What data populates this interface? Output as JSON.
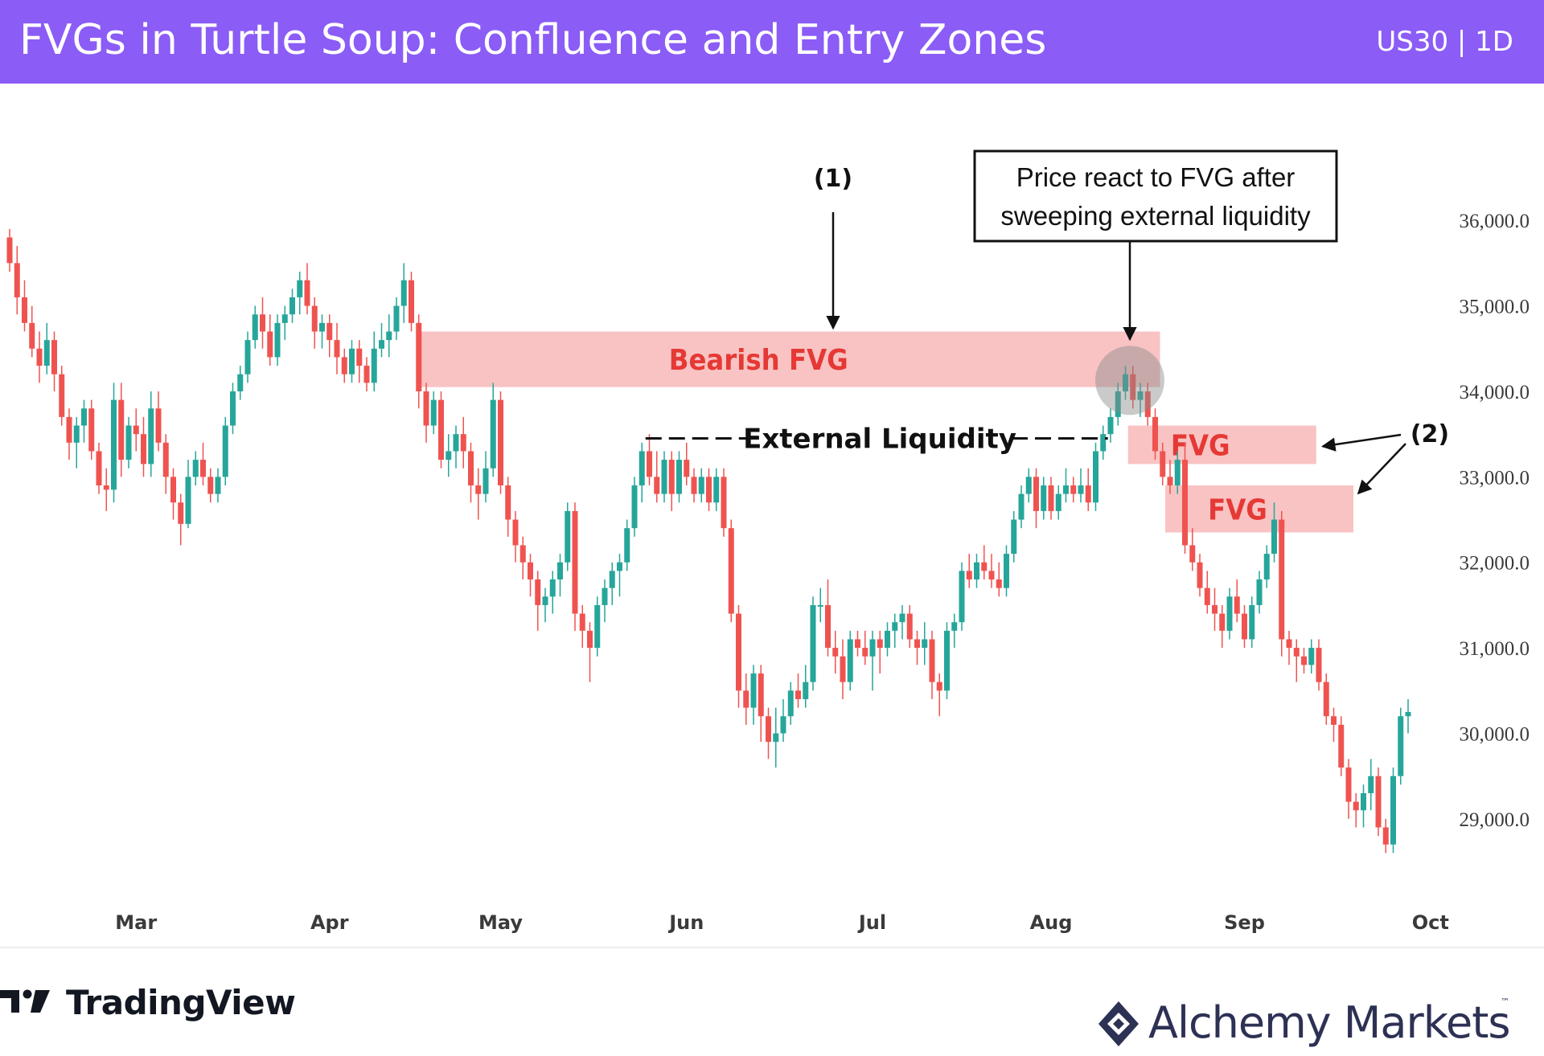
{
  "header": {
    "title": "FVGs in Turtle Soup: Confluence and Entry Zones",
    "symbol": "US30 | 1D"
  },
  "chart_data": {
    "type": "candlestick",
    "symbol": "US30",
    "timeframe": "1D",
    "ylim": [
      28200,
      37600
    ],
    "y_ticks": [
      {
        "value": 29000,
        "label": "29,000.0"
      },
      {
        "value": 30000,
        "label": "30,000.0"
      },
      {
        "value": 31000,
        "label": "31,000.0"
      },
      {
        "value": 32000,
        "label": "32,000.0"
      },
      {
        "value": 33000,
        "label": "33,000.0"
      },
      {
        "value": 34000,
        "label": "34,000.0"
      },
      {
        "value": 35000,
        "label": "35,000.0"
      },
      {
        "value": 36000,
        "label": "36,000.0"
      }
    ],
    "x_ticks": [
      {
        "index": 17,
        "label": "Mar"
      },
      {
        "index": 43,
        "label": "Apr"
      },
      {
        "index": 66,
        "label": "May"
      },
      {
        "index": 91,
        "label": "Jun"
      },
      {
        "index": 116,
        "label": "Jul"
      },
      {
        "index": 140,
        "label": "Aug"
      },
      {
        "index": 166,
        "label": "Sep"
      },
      {
        "index": 191,
        "label": "Oct"
      }
    ],
    "colors": {
      "up": "#26a69a",
      "down": "#ef5350",
      "zone": "#f8b4b4",
      "zone_text": "#e53935"
    },
    "candles": [
      [
        35800,
        35900,
        35400,
        35500
      ],
      [
        35500,
        35700,
        34900,
        35100
      ],
      [
        35100,
        35300,
        34700,
        34800
      ],
      [
        34800,
        35000,
        34400,
        34500
      ],
      [
        34500,
        34700,
        34100,
        34300
      ],
      [
        34300,
        34800,
        34200,
        34600
      ],
      [
        34600,
        34700,
        34000,
        34200
      ],
      [
        34200,
        34300,
        33600,
        33700
      ],
      [
        33700,
        33800,
        33200,
        33400
      ],
      [
        33400,
        33700,
        33100,
        33600
      ],
      [
        33600,
        33900,
        33400,
        33800
      ],
      [
        33800,
        33900,
        33200,
        33300
      ],
      [
        33300,
        33400,
        32800,
        32900
      ],
      [
        32900,
        33100,
        32600,
        32850
      ],
      [
        32850,
        34100,
        32700,
        33900
      ],
      [
        33900,
        34100,
        33000,
        33200
      ],
      [
        33200,
        33700,
        33100,
        33600
      ],
      [
        33600,
        33800,
        33300,
        33500
      ],
      [
        33500,
        33700,
        33000,
        33150
      ],
      [
        33150,
        34000,
        33000,
        33800
      ],
      [
        33800,
        34000,
        33300,
        33400
      ],
      [
        33400,
        33500,
        32800,
        33000
      ],
      [
        33000,
        33100,
        32500,
        32700
      ],
      [
        32700,
        32800,
        32200,
        32450
      ],
      [
        32450,
        33200,
        32400,
        33000
      ],
      [
        33000,
        33300,
        32900,
        33200
      ],
      [
        33200,
        33400,
        32900,
        33000
      ],
      [
        33000,
        33100,
        32700,
        32800
      ],
      [
        32800,
        33100,
        32700,
        33000
      ],
      [
        33000,
        33700,
        32900,
        33600
      ],
      [
        33600,
        34100,
        33500,
        34000
      ],
      [
        34000,
        34300,
        33900,
        34200
      ],
      [
        34200,
        34700,
        34100,
        34600
      ],
      [
        34600,
        35000,
        34500,
        34900
      ],
      [
        34900,
        35100,
        34500,
        34700
      ],
      [
        34700,
        34900,
        34300,
        34400
      ],
      [
        34400,
        34900,
        34300,
        34800
      ],
      [
        34800,
        35000,
        34600,
        34900
      ],
      [
        34900,
        35200,
        34800,
        35100
      ],
      [
        35100,
        35400,
        34900,
        35300
      ],
      [
        35300,
        35500,
        34900,
        35000
      ],
      [
        35000,
        35100,
        34500,
        34700
      ],
      [
        34700,
        34900,
        34500,
        34800
      ],
      [
        34800,
        34900,
        34400,
        34600
      ],
      [
        34600,
        34800,
        34200,
        34400
      ],
      [
        34400,
        34500,
        34100,
        34200
      ],
      [
        34200,
        34600,
        34100,
        34500
      ],
      [
        34500,
        34600,
        34100,
        34300
      ],
      [
        34300,
        34400,
        34000,
        34100
      ],
      [
        34100,
        34700,
        34000,
        34500
      ],
      [
        34500,
        34800,
        34400,
        34600
      ],
      [
        34600,
        34900,
        34400,
        34700
      ],
      [
        34700,
        35100,
        34600,
        35000
      ],
      [
        35000,
        35500,
        34800,
        35300
      ],
      [
        35300,
        35400,
        34700,
        34800
      ],
      [
        34800,
        34900,
        33800,
        34000
      ],
      [
        34000,
        34100,
        33400,
        33600
      ],
      [
        33600,
        34000,
        33500,
        33900
      ],
      [
        33900,
        34000,
        33100,
        33200
      ],
      [
        33200,
        33500,
        33000,
        33300
      ],
      [
        33300,
        33600,
        33100,
        33500
      ],
      [
        33500,
        33700,
        33100,
        33300
      ],
      [
        33300,
        33400,
        32700,
        32900
      ],
      [
        32900,
        33100,
        32500,
        32800
      ],
      [
        32800,
        33300,
        32700,
        33100
      ],
      [
        33100,
        34100,
        33000,
        33900
      ],
      [
        33900,
        34000,
        32800,
        32900
      ],
      [
        32900,
        33000,
        32300,
        32500
      ],
      [
        32500,
        32600,
        32000,
        32200
      ],
      [
        32200,
        32300,
        31800,
        32000
      ],
      [
        32000,
        32100,
        31600,
        31800
      ],
      [
        31800,
        31900,
        31200,
        31500
      ],
      [
        31500,
        31700,
        31300,
        31600
      ],
      [
        31600,
        31900,
        31400,
        31800
      ],
      [
        31800,
        32100,
        31600,
        32000
      ],
      [
        32000,
        32700,
        31900,
        32600
      ],
      [
        32600,
        32700,
        31200,
        31400
      ],
      [
        31400,
        31500,
        31000,
        31200
      ],
      [
        31200,
        31300,
        30600,
        31000
      ],
      [
        31000,
        31600,
        30900,
        31500
      ],
      [
        31500,
        31800,
        31300,
        31700
      ],
      [
        31700,
        32000,
        31500,
        31900
      ],
      [
        31900,
        32100,
        31600,
        32000
      ],
      [
        32000,
        32500,
        31900,
        32400
      ],
      [
        32400,
        33000,
        32300,
        32900
      ],
      [
        32900,
        33400,
        32700,
        33300
      ],
      [
        33300,
        33500,
        32900,
        33000
      ],
      [
        33000,
        33300,
        32700,
        32800
      ],
      [
        32800,
        33300,
        32700,
        33200
      ],
      [
        33200,
        33300,
        32600,
        32800
      ],
      [
        32800,
        33300,
        32700,
        33200
      ],
      [
        33200,
        33400,
        32900,
        33000
      ],
      [
        33000,
        33100,
        32700,
        32800
      ],
      [
        32800,
        33100,
        32700,
        33000
      ],
      [
        33000,
        33100,
        32600,
        32700
      ],
      [
        32700,
        33100,
        32600,
        33000
      ],
      [
        33000,
        33100,
        32300,
        32400
      ],
      [
        32400,
        32500,
        31300,
        31400
      ],
      [
        31400,
        31500,
        30300,
        30500
      ],
      [
        30500,
        30700,
        30100,
        30300
      ],
      [
        30300,
        30800,
        30100,
        30700
      ],
      [
        30700,
        30800,
        29900,
        30200
      ],
      [
        30200,
        30300,
        29700,
        29900
      ],
      [
        29900,
        30300,
        29600,
        30000
      ],
      [
        30000,
        30400,
        29900,
        30200
      ],
      [
        30200,
        30600,
        30100,
        30500
      ],
      [
        30500,
        30700,
        30300,
        30400
      ],
      [
        30400,
        30800,
        30300,
        30600
      ],
      [
        30600,
        31600,
        30500,
        31500
      ],
      [
        31500,
        31700,
        31300,
        31500
      ],
      [
        31500,
        31800,
        30900,
        31000
      ],
      [
        31000,
        31200,
        30700,
        30900
      ],
      [
        30900,
        31100,
        30400,
        30600
      ],
      [
        30600,
        31200,
        30500,
        31100
      ],
      [
        31100,
        31200,
        30900,
        31000
      ],
      [
        31000,
        31200,
        30800,
        30900
      ],
      [
        30900,
        31200,
        30500,
        31100
      ],
      [
        31100,
        31200,
        30700,
        31000
      ],
      [
        31000,
        31300,
        30900,
        31200
      ],
      [
        31200,
        31400,
        31000,
        31300
      ],
      [
        31300,
        31500,
        31100,
        31400
      ],
      [
        31400,
        31500,
        31000,
        31100
      ],
      [
        31100,
        31200,
        30800,
        31000
      ],
      [
        31000,
        31300,
        30800,
        31100
      ],
      [
        31100,
        31200,
        30400,
        30600
      ],
      [
        30600,
        30700,
        30200,
        30500
      ],
      [
        30500,
        31300,
        30400,
        31200
      ],
      [
        31200,
        31400,
        31000,
        31300
      ],
      [
        31300,
        32000,
        31200,
        31900
      ],
      [
        31900,
        32100,
        31700,
        31800
      ],
      [
        31800,
        32100,
        31700,
        32000
      ],
      [
        32000,
        32200,
        31800,
        31900
      ],
      [
        31900,
        32100,
        31700,
        31800
      ],
      [
        31800,
        32000,
        31600,
        31700
      ],
      [
        31700,
        32200,
        31600,
        32100
      ],
      [
        32100,
        32600,
        32000,
        32500
      ],
      [
        32500,
        32900,
        32400,
        32800
      ],
      [
        32800,
        33100,
        32700,
        33000
      ],
      [
        33000,
        33100,
        32400,
        32600
      ],
      [
        32600,
        33000,
        32500,
        32900
      ],
      [
        32900,
        33000,
        32500,
        32600
      ],
      [
        32600,
        32900,
        32500,
        32800
      ],
      [
        32800,
        33100,
        32700,
        32900
      ],
      [
        32900,
        33000,
        32700,
        32800
      ],
      [
        32800,
        33100,
        32700,
        32900
      ],
      [
        32900,
        33100,
        32600,
        32700
      ],
      [
        32700,
        33400,
        32600,
        33300
      ],
      [
        33300,
        33600,
        33200,
        33500
      ],
      [
        33500,
        33800,
        33400,
        33700
      ],
      [
        33700,
        34100,
        33600,
        34000
      ],
      [
        34000,
        34300,
        33900,
        34200
      ],
      [
        34200,
        34300,
        33800,
        33900
      ],
      [
        33900,
        34100,
        33700,
        34000
      ],
      [
        34000,
        34100,
        33600,
        33700
      ],
      [
        33700,
        33800,
        33200,
        33300
      ],
      [
        33300,
        33400,
        32900,
        33000
      ],
      [
        33000,
        33200,
        32800,
        32900
      ],
      [
        32900,
        33300,
        32800,
        33200
      ],
      [
        33200,
        33400,
        32100,
        32200
      ],
      [
        32200,
        32400,
        31900,
        32000
      ],
      [
        32000,
        32100,
        31600,
        31700
      ],
      [
        31700,
        31900,
        31400,
        31500
      ],
      [
        31500,
        31700,
        31200,
        31400
      ],
      [
        31400,
        31500,
        31000,
        31200
      ],
      [
        31200,
        31700,
        31100,
        31600
      ],
      [
        31600,
        31800,
        31300,
        31400
      ],
      [
        31400,
        31500,
        31000,
        31100
      ],
      [
        31100,
        31600,
        31000,
        31500
      ],
      [
        31500,
        31900,
        31400,
        31800
      ],
      [
        31800,
        32200,
        31700,
        32100
      ],
      [
        32100,
        32700,
        32000,
        32500
      ],
      [
        32500,
        32600,
        30900,
        31100
      ],
      [
        31100,
        31200,
        30800,
        31000
      ],
      [
        31000,
        31100,
        30600,
        30900
      ],
      [
        30900,
        31000,
        30700,
        30800
      ],
      [
        30800,
        31100,
        30700,
        31000
      ],
      [
        31000,
        31100,
        30500,
        30600
      ],
      [
        30600,
        30700,
        30100,
        30200
      ],
      [
        30200,
        30300,
        29900,
        30100
      ],
      [
        30100,
        30200,
        29500,
        29600
      ],
      [
        29600,
        29700,
        29000,
        29200
      ],
      [
        29200,
        29300,
        28900,
        29100
      ],
      [
        29100,
        29400,
        28900,
        29300
      ],
      [
        29300,
        29700,
        29100,
        29500
      ],
      [
        29500,
        29600,
        28800,
        28900
      ],
      [
        28900,
        29000,
        28600,
        28700
      ],
      [
        28700,
        29600,
        28600,
        29500
      ],
      [
        29500,
        30300,
        29400,
        30200
      ],
      [
        30200,
        30400,
        30000,
        30250
      ]
    ],
    "zones": [
      {
        "label": "Bearish FVG",
        "from_index": 56,
        "to_index": 154,
        "low": 34050,
        "high": 34700
      },
      {
        "label": "FVG",
        "from_index": 151,
        "to_index": 175,
        "low": 33150,
        "high": 33600
      },
      {
        "label": "FVG",
        "from_index": 156,
        "to_index": 180,
        "low": 32350,
        "high": 32900
      }
    ],
    "external_liquidity": {
      "label": "External Liquidity",
      "price": 33450,
      "from_index": 87,
      "to_index": 147
    },
    "callout_text": [
      "Price react to FVG after",
      "sweeping external liquidity"
    ],
    "annotations": [
      {
        "label": "(1)",
        "target": "Bearish FVG"
      },
      {
        "label": "(2)",
        "target": "FVG"
      }
    ]
  },
  "footer": {
    "left_brand": "TradingView",
    "right_brand": "Alchemy Markets",
    "trademark": "™"
  }
}
